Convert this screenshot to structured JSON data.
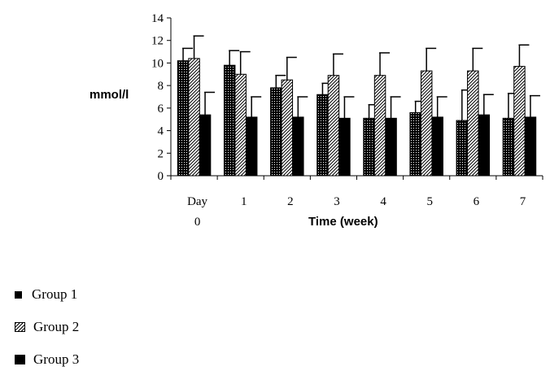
{
  "chart_data": {
    "type": "bar",
    "title": "",
    "ylabel": "mmol/l",
    "xlabel": "Time (week)",
    "ylim": [
      0,
      14
    ],
    "yticks": [
      0,
      2,
      4,
      6,
      8,
      10,
      12,
      14
    ],
    "categories": [
      "Day",
      "1",
      "2",
      "3",
      "4",
      "5",
      "6",
      "7"
    ],
    "category_sublabel": "0",
    "error_bars": true,
    "series": [
      {
        "name": "Group 1",
        "values": [
          10.2,
          9.8,
          7.8,
          7.2,
          5.1,
          5.6,
          4.9,
          5.1
        ],
        "errors": [
          1.1,
          1.3,
          1.1,
          1.0,
          1.2,
          1.0,
          2.7,
          2.2
        ]
      },
      {
        "name": "Group 2",
        "values": [
          10.4,
          9.0,
          8.5,
          8.9,
          8.9,
          9.3,
          9.3,
          9.7
        ],
        "errors": [
          2.0,
          2.0,
          2.0,
          1.9,
          2.0,
          2.0,
          2.0,
          1.9
        ]
      },
      {
        "name": "Group 3",
        "values": [
          5.4,
          5.2,
          5.2,
          5.1,
          5.1,
          5.2,
          5.4,
          5.2
        ],
        "errors": [
          2.0,
          1.8,
          1.8,
          1.9,
          1.9,
          1.8,
          1.8,
          1.9
        ]
      }
    ],
    "legend_position": "bottom-left"
  },
  "legend": {
    "items": [
      {
        "label": "Group 1"
      },
      {
        "label": "Group 2"
      },
      {
        "label": "Group 3"
      }
    ]
  }
}
